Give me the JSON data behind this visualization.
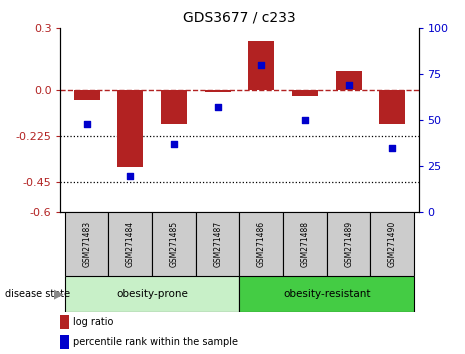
{
  "title": "GDS3677 / c233",
  "samples": [
    "GSM271483",
    "GSM271484",
    "GSM271485",
    "GSM271487",
    "GSM271486",
    "GSM271488",
    "GSM271489",
    "GSM271490"
  ],
  "log_ratio": [
    -0.05,
    -0.38,
    -0.17,
    -0.01,
    0.24,
    -0.03,
    0.09,
    -0.17
  ],
  "percentile_rank": [
    48,
    20,
    37,
    57,
    80,
    50,
    69,
    35
  ],
  "group1_label": "obesity-prone",
  "group1_count": 4,
  "group2_label": "obesity-resistant",
  "group2_count": 4,
  "disease_state_label": "disease state",
  "ylim_left": [
    -0.6,
    0.3
  ],
  "ylim_right": [
    0,
    100
  ],
  "yticks_left": [
    -0.6,
    -0.45,
    -0.225,
    0.0,
    0.3
  ],
  "yticks_right": [
    0,
    25,
    50,
    75,
    100
  ],
  "hline_dotted": [
    -0.225,
    -0.45
  ],
  "bar_color": "#b22222",
  "dot_color": "#0000cc",
  "group1_bg": "#c8f0c8",
  "group2_bg": "#44cc44",
  "sample_bg": "#cccccc",
  "legend_bar_label": "log ratio",
  "legend_dot_label": "percentile rank within the sample",
  "figsize": [
    4.65,
    3.54
  ],
  "dpi": 100
}
